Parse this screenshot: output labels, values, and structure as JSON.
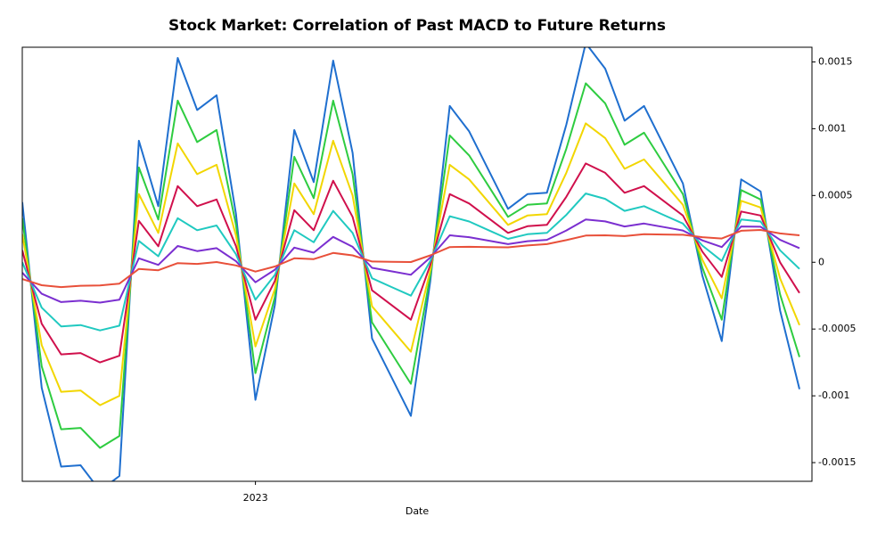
{
  "chart_data": {
    "type": "line",
    "title": "Stock Market: Correlation of Past MACD to Future Returns",
    "xlabel": "Date",
    "categories": [
      null,
      null,
      null,
      null,
      null,
      null,
      null,
      null,
      null,
      null,
      null,
      null,
      "2023",
      null,
      null,
      null,
      null,
      null,
      null,
      null,
      null,
      null,
      null,
      null,
      null,
      null,
      null,
      null,
      null,
      null,
      null,
      null,
      null,
      null,
      null,
      null,
      null,
      null,
      null,
      null,
      null
    ],
    "ylim": [
      -0.00164,
      0.00161
    ],
    "yticks": [
      -0.0015,
      -0.001,
      -0.0005,
      0,
      0.0005,
      0.001,
      0.0015
    ],
    "y_axis_side": "right",
    "series": [
      {
        "color": "#1f6fcf",
        "values": [
          0.00045,
          -0.00094,
          -0.00153,
          -0.00152,
          -0.00171,
          -0.0016,
          0.00091,
          0.00042,
          0.00153,
          0.00114,
          0.00125,
          0.00036,
          -0.00103,
          -0.00032,
          0.00099,
          0.0006,
          0.00151,
          0.00082,
          -0.00057,
          -0.00086,
          -0.00115,
          -0.00014,
          0.00117,
          0.00098,
          0.00069,
          0.0004,
          0.00051,
          0.00052,
          0.00103,
          0.00164,
          0.00145,
          0.00106,
          0.00117,
          0.00088,
          0.00059,
          -0.0001,
          -0.00059,
          0.00062,
          0.00053,
          -0.00036,
          -0.00095
        ]
      },
      {
        "color": "#2ecc40",
        "values": [
          0.00033,
          -0.00078,
          -0.00125,
          -0.00124,
          -0.00139,
          -0.0013,
          0.00071,
          0.00032,
          0.00121,
          0.0009,
          0.00099,
          0.00028,
          -0.00083,
          -0.00026,
          0.00079,
          0.00048,
          0.00121,
          0.00066,
          -0.00045,
          -0.00068,
          -0.00091,
          -0.0001,
          0.00095,
          0.0008,
          0.00057,
          0.00034,
          0.00043,
          0.00044,
          0.00085,
          0.00134,
          0.00119,
          0.00088,
          0.00097,
          0.00074,
          0.00051,
          -4e-05,
          -0.00043,
          0.00054,
          0.00047,
          -0.00024,
          -0.00071
        ]
      },
      {
        "color": "#f2d600",
        "values": [
          0.00021,
          -0.00062,
          -0.00097,
          -0.00096,
          -0.00107,
          -0.001,
          0.00051,
          0.00022,
          0.00089,
          0.00066,
          0.00073,
          0.0002,
          -0.00063,
          -0.0002,
          0.00059,
          0.00036,
          0.00091,
          0.0005,
          -0.00033,
          -0.0005,
          -0.00067,
          -6e-05,
          0.00073,
          0.00062,
          0.00045,
          0.00028,
          0.00035,
          0.00036,
          0.00067,
          0.00104,
          0.00093,
          0.0007,
          0.00077,
          0.0006,
          0.00043,
          2e-05,
          -0.00027,
          0.00046,
          0.00041,
          -0.00012,
          -0.00047
        ]
      },
      {
        "color": "#d0104c",
        "values": [
          9e-05,
          -0.00046,
          -0.00069,
          -0.00068,
          -0.00075,
          -0.0007,
          0.00031,
          0.00012,
          0.00057,
          0.00042,
          0.00047,
          0.00012,
          -0.00043,
          -0.00014,
          0.00039,
          0.00024,
          0.00061,
          0.00034,
          -0.00021,
          -0.00032,
          -0.00043,
          -2e-05,
          0.00051,
          0.00044,
          0.00033,
          0.00022,
          0.00027,
          0.00028,
          0.00049,
          0.00074,
          0.00067,
          0.00052,
          0.00057,
          0.00046,
          0.00035,
          8e-05,
          -0.00011,
          0.00038,
          0.00035,
          0,
          -0.00023
        ]
      },
      {
        "color": "#20c9c0",
        "values": [
          0,
          -0.00034,
          -0.00048,
          -0.00047,
          -0.00051,
          -0.000475,
          0.00016,
          4.5e-05,
          0.00033,
          0.00024,
          0.000275,
          6e-05,
          -0.00028,
          -9.5e-05,
          0.00024,
          0.00015,
          0.000385,
          0.00022,
          -0.00012,
          -0.000185,
          -0.00025,
          1e-05,
          0.000345,
          0.000305,
          0.00024,
          0.000175,
          0.00021,
          0.00022,
          0.000355,
          0.000515,
          0.000475,
          0.000385,
          0.00042,
          0.000355,
          0.00029,
          0.000125,
          1e-05,
          0.00032,
          0.000305,
          9e-05,
          -5e-05
        ]
      },
      {
        "color": "#7b2fd0",
        "values": [
          -7.8e-05,
          -0.000236,
          -0.000298,
          -0.000288,
          -0.000302,
          -0.00028,
          3e-05,
          -2e-05,
          0.000122,
          8.4e-05,
          0.000106,
          8e-06,
          -0.00015,
          -5.6e-05,
          0.00011,
          7.2e-05,
          0.00019,
          0.000116,
          -4.2e-05,
          -6.8e-05,
          -9.4e-05,
          3.6e-05,
          0.000202,
          0.000188,
          0.000162,
          0.000136,
          0.000158,
          0.000168,
          0.000238,
          0.00032,
          0.000306,
          0.000268,
          0.00029,
          0.000264,
          0.000238,
          0.000164,
          0.000114,
          0.000268,
          0.000266,
          0.000168,
          0.000106
        ]
      },
      {
        "color": "#e8503a",
        "values": [
          -0.000126,
          -0.000172,
          -0.000186,
          -0.000176,
          -0.000174,
          -0.00016,
          -5e-05,
          -6e-05,
          -6e-06,
          -1.2e-05,
          2e-06,
          -2.4e-05,
          -7e-05,
          -3.2e-05,
          3e-05,
          2.4e-05,
          7e-05,
          5.2e-05,
          6e-06,
          4e-06,
          2e-06,
          5.2e-05,
          0.000114,
          0.000116,
          0.000114,
          0.000112,
          0.000126,
          0.000136,
          0.000166,
          0.0002,
          0.000202,
          0.000196,
          0.00021,
          0.000208,
          0.000206,
          0.000188,
          0.000178,
          0.000236,
          0.000242,
          0.000216,
          0.000202
        ]
      }
    ]
  }
}
